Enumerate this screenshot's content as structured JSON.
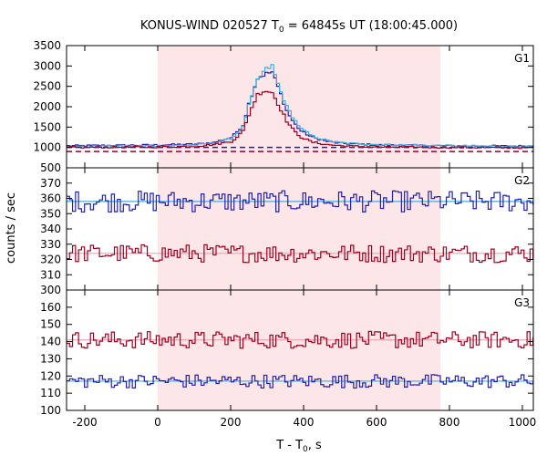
{
  "title_prefix": "KONUS-WIND 020527 T",
  "title_sub": "0",
  "title_suffix": " = 64845s UT (18:00:45.000)",
  "xlabel_prefix": "T - T",
  "xlabel_sub": "0",
  "xlabel_suffix": ", s",
  "ylabel": "counts / sec",
  "colors": {
    "red": "#a00020",
    "blue": "#2020b0",
    "cyan": "#40b0e0",
    "pink": "#f0a0b0",
    "shade": "#fde6e8"
  },
  "chart_data": [
    {
      "type": "line",
      "panel": "G1",
      "label": "G1",
      "xlim": [
        -250,
        1030
      ],
      "ylim": [
        500,
        3500
      ],
      "yticks": [
        500,
        1000,
        1500,
        2000,
        2500,
        3000,
        3500
      ],
      "xticks": [
        -200,
        0,
        200,
        400,
        600,
        800,
        1000
      ],
      "shaded_interval": [
        0,
        775
      ],
      "background": {
        "red": 900,
        "blue": 1000
      },
      "series": [
        {
          "color": "blue",
          "x": [
            -250,
            0,
            100,
            150,
            200,
            230,
            250,
            270,
            290,
            310,
            330,
            350,
            370,
            390,
            420,
            460,
            500,
            600,
            800,
            1030
          ],
          "y": [
            1040,
            1060,
            1080,
            1120,
            1250,
            1550,
            2200,
            2700,
            2800,
            2850,
            2400,
            1900,
            1600,
            1400,
            1250,
            1150,
            1100,
            1060,
            1040,
            1030
          ]
        },
        {
          "color": "cyan",
          "x": [
            -250,
            0,
            100,
            150,
            200,
            230,
            250,
            270,
            290,
            310,
            330,
            350,
            370,
            390,
            420,
            460,
            500,
            600,
            800,
            1030
          ],
          "y": [
            1020,
            1040,
            1060,
            1100,
            1220,
            1500,
            2150,
            2650,
            2900,
            3000,
            2450,
            2000,
            1700,
            1450,
            1280,
            1170,
            1110,
            1070,
            1040,
            1020
          ]
        },
        {
          "color": "red",
          "x": [
            -250,
            0,
            100,
            150,
            200,
            230,
            250,
            270,
            290,
            310,
            330,
            350,
            370,
            390,
            420,
            460,
            500,
            600,
            800,
            1030
          ],
          "y": [
            1000,
            1010,
            1030,
            1070,
            1150,
            1400,
            1900,
            2300,
            2400,
            2350,
            2000,
            1650,
            1400,
            1250,
            1130,
            1070,
            1040,
            1010,
            1000,
            990
          ]
        }
      ]
    },
    {
      "type": "line",
      "panel": "G2",
      "label": "G2",
      "xlim": [
        -250,
        1030
      ],
      "ylim": [
        300,
        380
      ],
      "yticks": [
        300,
        310,
        320,
        330,
        340,
        350,
        360,
        370
      ],
      "series": [
        {
          "color": "blue",
          "mean": 358,
          "noise": 7
        },
        {
          "color": "red",
          "mean": 324,
          "noise": 6
        }
      ]
    },
    {
      "type": "line",
      "panel": "G3",
      "label": "G3",
      "xlim": [
        -250,
        1030
      ],
      "ylim": [
        100,
        170
      ],
      "yticks": [
        100,
        110,
        120,
        130,
        140,
        150,
        160
      ],
      "series": [
        {
          "color": "red",
          "mean": 141,
          "noise": 5
        },
        {
          "color": "blue",
          "mean": 117,
          "noise": 4
        }
      ]
    }
  ]
}
